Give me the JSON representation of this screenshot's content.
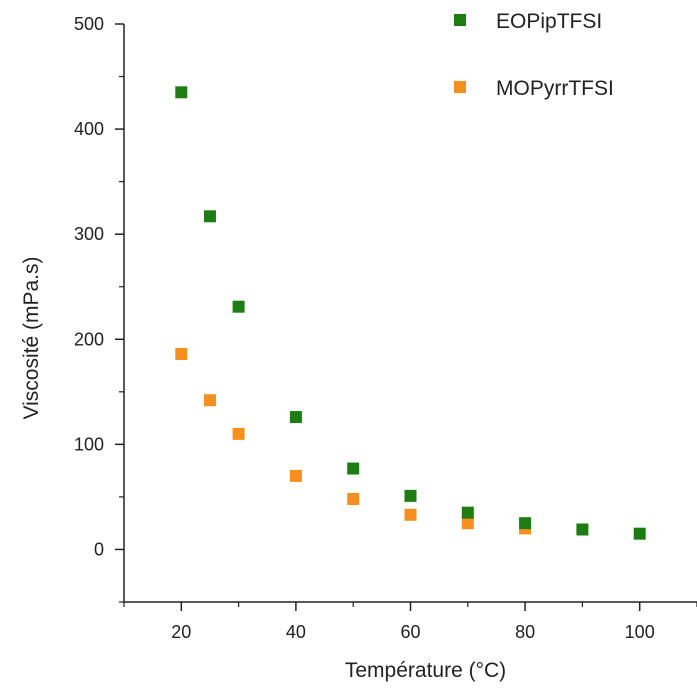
{
  "chart_data": {
    "type": "scatter",
    "title": "",
    "xlabel": "Température (°C)",
    "ylabel": "Viscosité (mPa.s)",
    "xlim": [
      10,
      110
    ],
    "ylim": [
      -50,
      500
    ],
    "xticks": [
      20,
      40,
      60,
      80,
      100
    ],
    "yticks": [
      0,
      100,
      200,
      300,
      400,
      500
    ],
    "grid": false,
    "legend_position": "top-right",
    "series": [
      {
        "name": "EOPipTFSI",
        "color": "#1e7d12",
        "marker": "square",
        "x": [
          20,
          25,
          30,
          40,
          50,
          60,
          70,
          80,
          90,
          100
        ],
        "y": [
          435,
          317,
          231,
          126,
          77,
          51,
          35,
          25,
          19,
          15
        ]
      },
      {
        "name": "MOPyrrTFSI",
        "color": "#f5901e",
        "marker": "square",
        "x": [
          20,
          25,
          30,
          40,
          50,
          60,
          70,
          80
        ],
        "y": [
          186,
          142,
          110,
          70,
          48,
          33,
          25,
          20
        ]
      }
    ]
  }
}
